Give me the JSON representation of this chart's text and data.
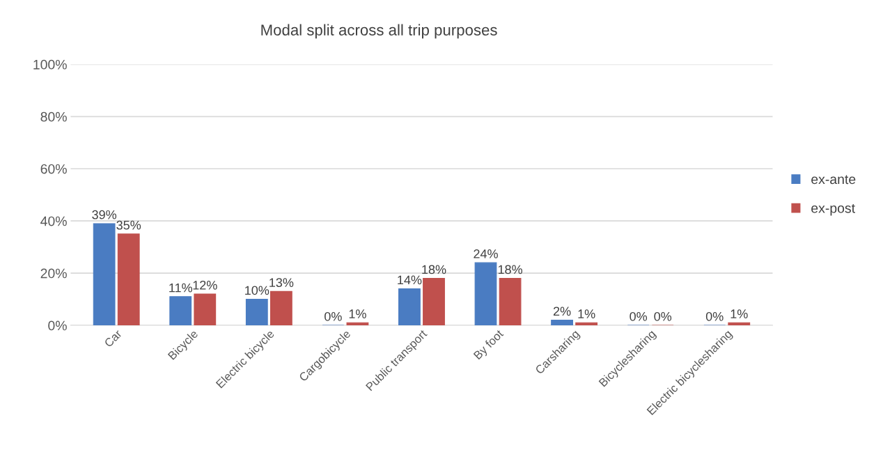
{
  "chart_data": {
    "type": "bar",
    "title": "Modal split across all trip purposes",
    "categories": [
      "Car",
      "Bicycle",
      "Electric bicycle",
      "Cargobicycle",
      "Public transport",
      "By foot",
      "Carsharing",
      "Bicyclesharing",
      "Electric bicyclesharing"
    ],
    "series": [
      {
        "name": "ex-ante",
        "color": "#4a7cc2",
        "values": [
          39,
          11,
          10,
          0,
          14,
          24,
          2,
          0,
          0
        ],
        "value_labels": [
          "39%",
          "11%",
          "10%",
          "0%",
          "14%",
          "24%",
          "2%",
          "0%",
          "0%"
        ]
      },
      {
        "name": "ex-post",
        "color": "#c0504d",
        "values": [
          35,
          12,
          13,
          1,
          18,
          18,
          1,
          0,
          1
        ],
        "value_labels": [
          "35%",
          "12%",
          "13%",
          "1%",
          "18%",
          "18%",
          "1%",
          "0%",
          "1%"
        ]
      }
    ],
    "ylim": [
      0,
      100
    ],
    "yticks": [
      {
        "value": 0,
        "label": "0%"
      },
      {
        "value": 20,
        "label": "20%"
      },
      {
        "value": 40,
        "label": "40%"
      },
      {
        "value": 60,
        "label": "60%"
      },
      {
        "value": 80,
        "label": "80%"
      },
      {
        "value": 100,
        "label": "100%"
      }
    ],
    "grid": "y",
    "legend": "right"
  }
}
